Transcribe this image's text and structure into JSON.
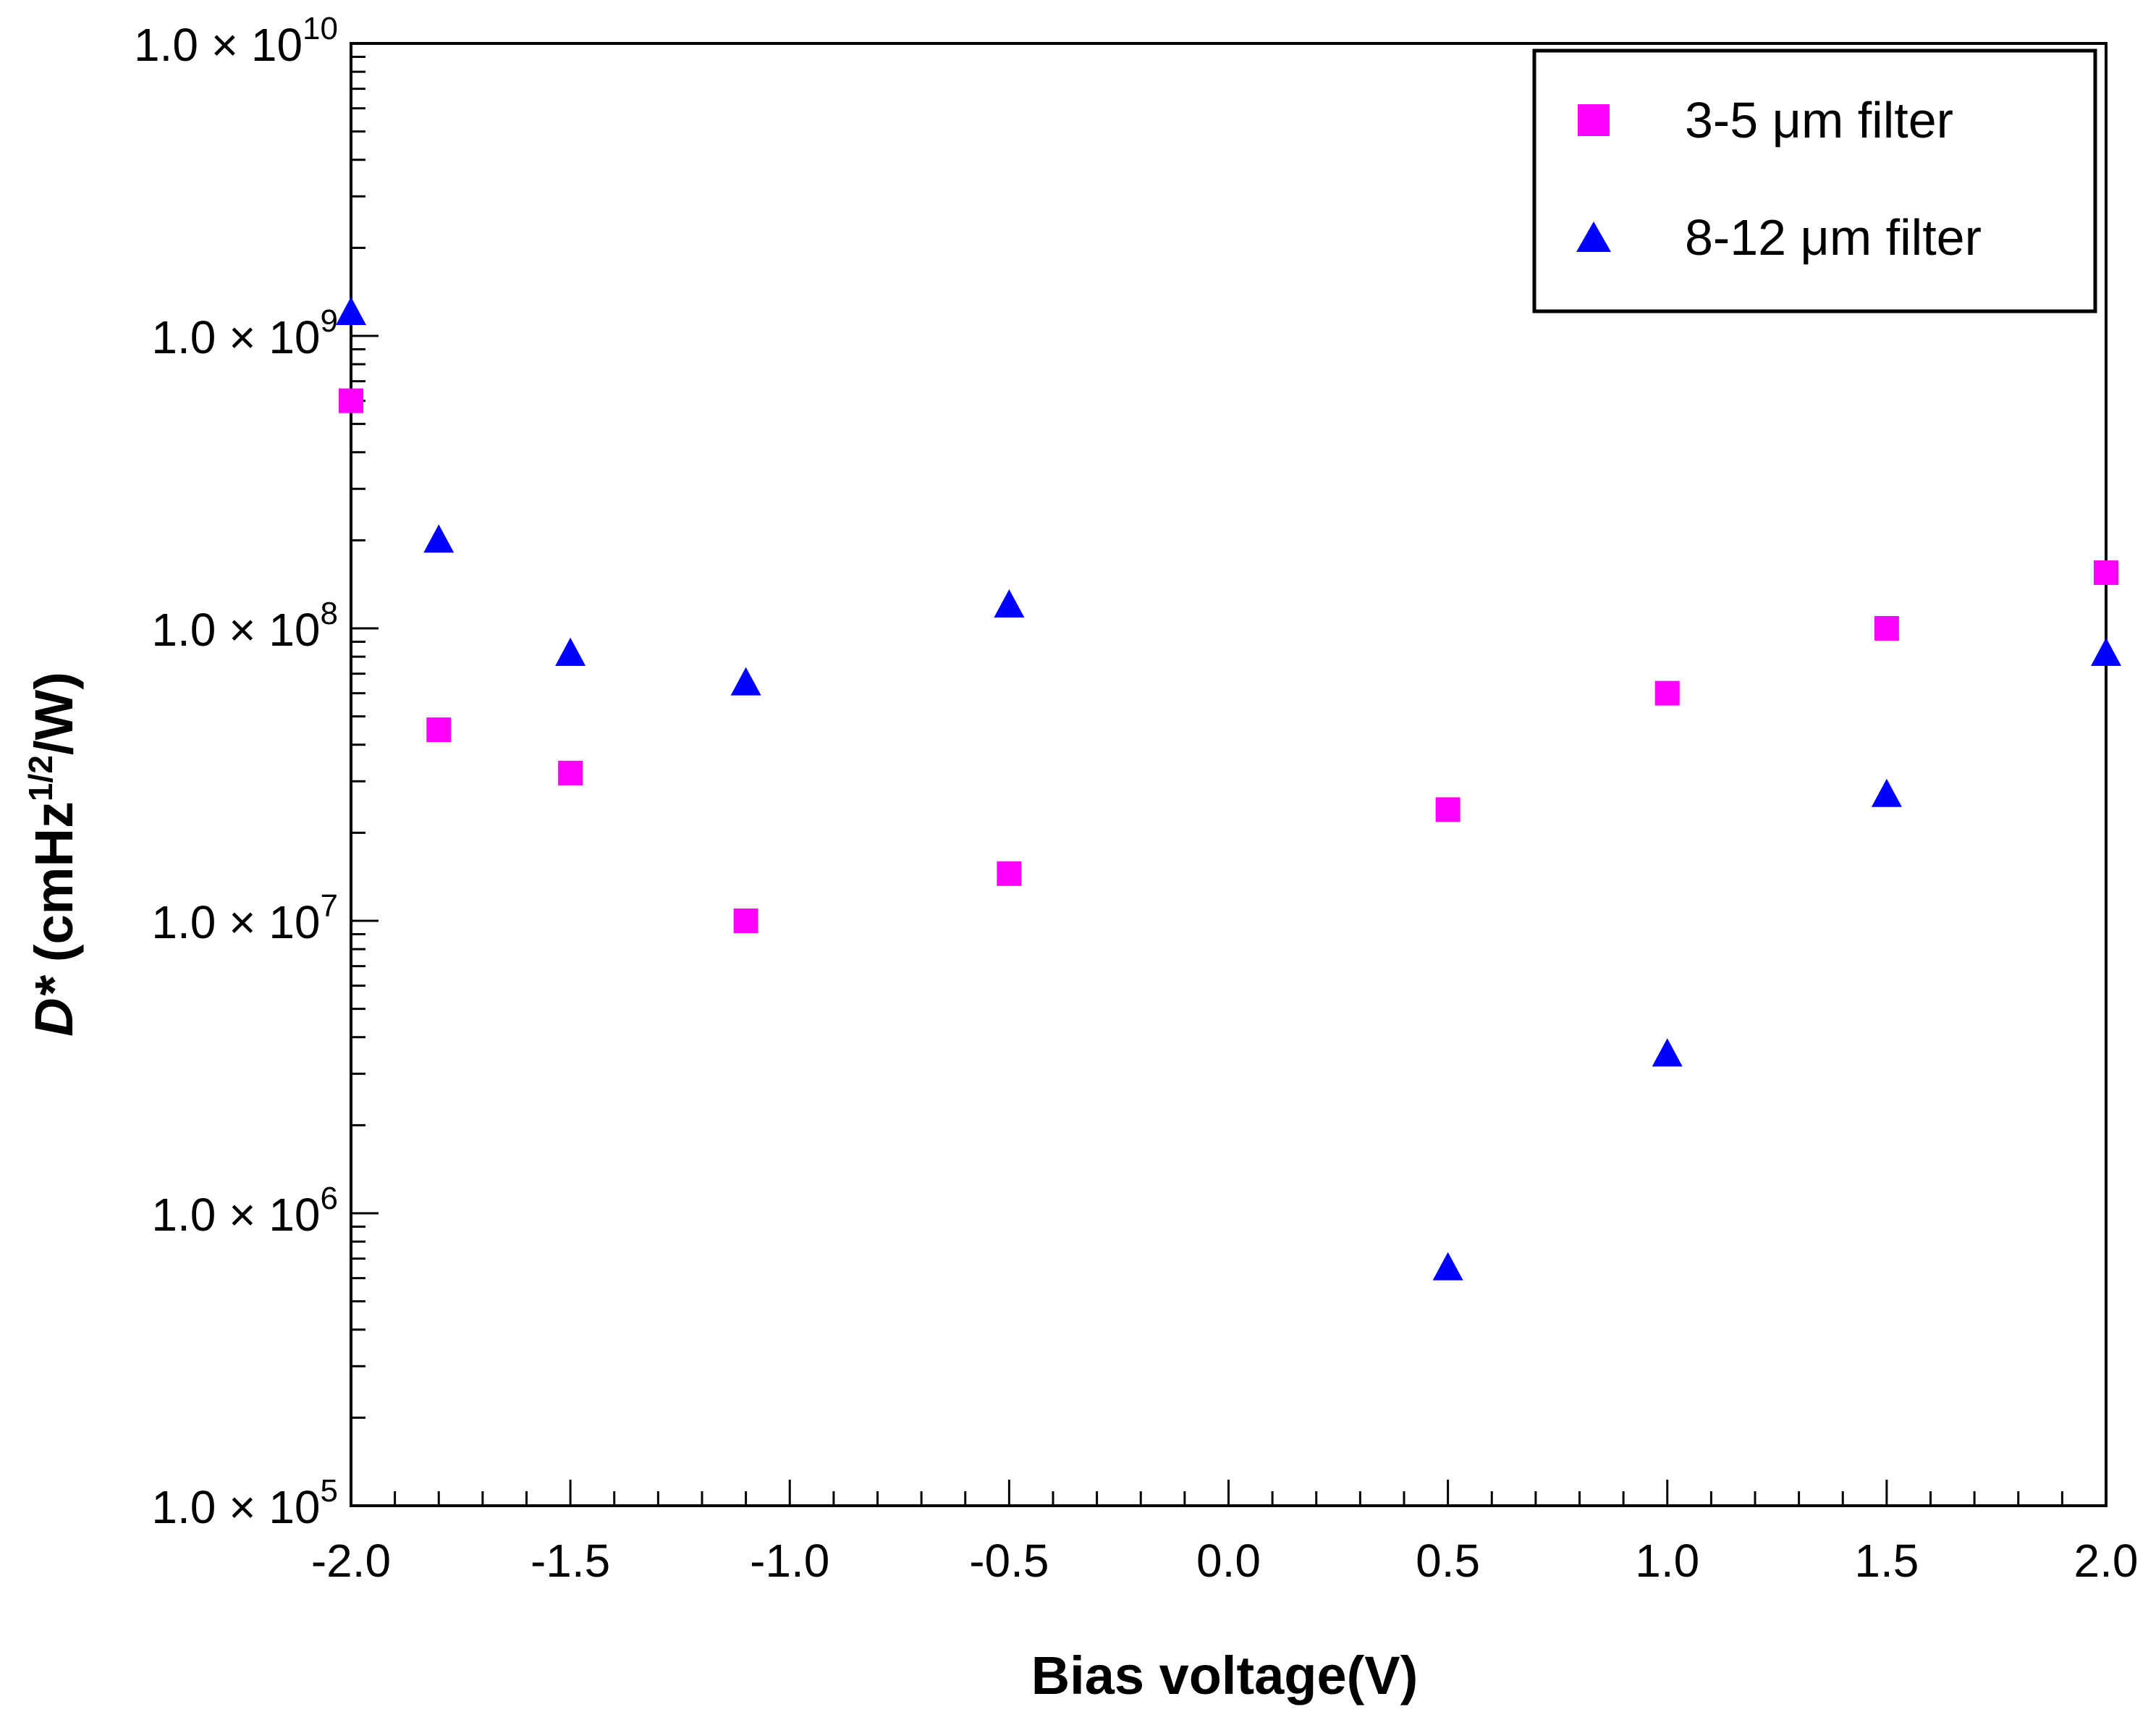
{
  "chart_data": {
    "type": "scatter",
    "title": "",
    "xlabel": "Bias voltage(V)",
    "ylabel": {
      "symbol": "D*",
      "unit_prefix": " (cmHz",
      "unit_sup": "1/2",
      "unit_suffix": "/W)"
    },
    "xlim": [
      -2.0,
      2.0
    ],
    "ylim": [
      100000,
      10000000000
    ],
    "yscale": "log",
    "x_ticks": [
      "-2.0",
      "-1.5",
      "-1.0",
      "-0.5",
      "0.0",
      "0.5",
      "1.0",
      "1.5",
      "2.0"
    ],
    "y_ticks": [
      {
        "mantissa": "1.0 × 10",
        "exp": "5"
      },
      {
        "mantissa": "1.0 × 10",
        "exp": "6"
      },
      {
        "mantissa": "1.0 × 10",
        "exp": "7"
      },
      {
        "mantissa": "1.0 × 10",
        "exp": "8"
      },
      {
        "mantissa": "1.0 × 10",
        "exp": "9"
      },
      {
        "mantissa": "1.0 × 10",
        "exp": "10"
      }
    ],
    "legend_position": "top-right",
    "grid": false,
    "series": [
      {
        "name": "3-5 μm filter",
        "marker": "square",
        "color": "#FF00FF",
        "x": [
          -2.0,
          -1.8,
          -1.5,
          -1.1,
          -0.5,
          0.5,
          1.0,
          1.5,
          2.0
        ],
        "y": [
          600000000,
          45000000,
          32000000,
          10000000,
          14500000,
          24000000,
          60000000,
          100000000,
          155000000
        ]
      },
      {
        "name": "8-12 μm filter",
        "marker": "triangle",
        "color": "#0000FF",
        "x": [
          -2.0,
          -1.8,
          -1.5,
          -1.1,
          -0.5,
          0.5,
          1.0,
          1.5,
          2.0
        ],
        "y": [
          1200000000,
          200000000,
          82000000,
          65000000,
          120000000,
          650000,
          3500000,
          27000000,
          82000000
        ]
      }
    ]
  }
}
